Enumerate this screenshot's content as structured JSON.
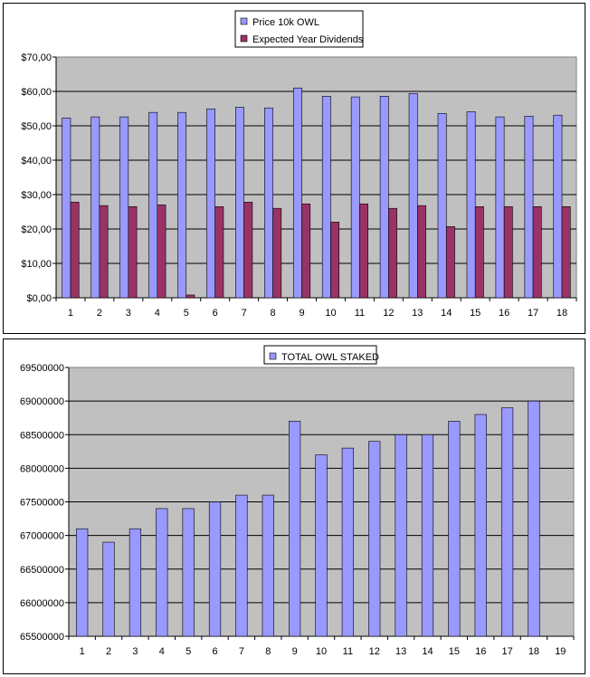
{
  "colors": {
    "plot_bg": "#c0c0c0",
    "price": "#9999ff",
    "dividends": "#993366",
    "gridline": "#000000",
    "bar_outline": "#000000"
  },
  "chart_data": [
    {
      "type": "bar",
      "title": "",
      "xlabel": "",
      "ylabel": "",
      "categories": [
        "1",
        "2",
        "3",
        "4",
        "5",
        "6",
        "7",
        "8",
        "9",
        "10",
        "11",
        "12",
        "13",
        "14",
        "15",
        "16",
        "17",
        "18"
      ],
      "series": [
        {
          "name": "Price 10k OWL",
          "values": [
            52.3,
            52.6,
            52.6,
            53.9,
            53.9,
            54.9,
            55.4,
            55.2,
            61.0,
            58.6,
            58.4,
            58.6,
            59.4,
            53.6,
            54.1,
            52.6,
            52.8,
            53.1
          ]
        },
        {
          "name": "Expected Year Dividends",
          "values": [
            27.8,
            26.8,
            26.5,
            27.0,
            0.8,
            26.5,
            27.8,
            26.0,
            27.3,
            22.0,
            27.3,
            26.0,
            26.8,
            20.7,
            26.5,
            26.5,
            26.5,
            26.5
          ]
        }
      ],
      "ylim": [
        0,
        70
      ],
      "yticks": [
        "$0,00",
        "$10,00",
        "$20,00",
        "$30,00",
        "$40,00",
        "$50,00",
        "$60,00",
        "$70,00"
      ],
      "grid": true,
      "legend_placement": "top-center"
    },
    {
      "type": "bar",
      "title": "",
      "xlabel": "",
      "ylabel": "",
      "categories": [
        "1",
        "2",
        "3",
        "4",
        "5",
        "6",
        "7",
        "8",
        "9",
        "10",
        "11",
        "12",
        "13",
        "14",
        "15",
        "16",
        "17",
        "18",
        "19"
      ],
      "series": [
        {
          "name": "TOTAL OWL STAKED",
          "values": [
            67100000,
            66900000,
            67100000,
            67400000,
            67400000,
            67500000,
            67600000,
            67600000,
            68700000,
            68200000,
            68300000,
            68400000,
            68500000,
            68500000,
            68700000,
            68800000,
            68900000,
            69000000,
            null
          ]
        }
      ],
      "ylim": [
        65500000,
        69500000
      ],
      "yticks": [
        "65500000",
        "66000000",
        "66500000",
        "67000000",
        "67500000",
        "68000000",
        "68500000",
        "69000000",
        "69500000"
      ],
      "grid": true,
      "legend_placement": "top-center"
    }
  ]
}
